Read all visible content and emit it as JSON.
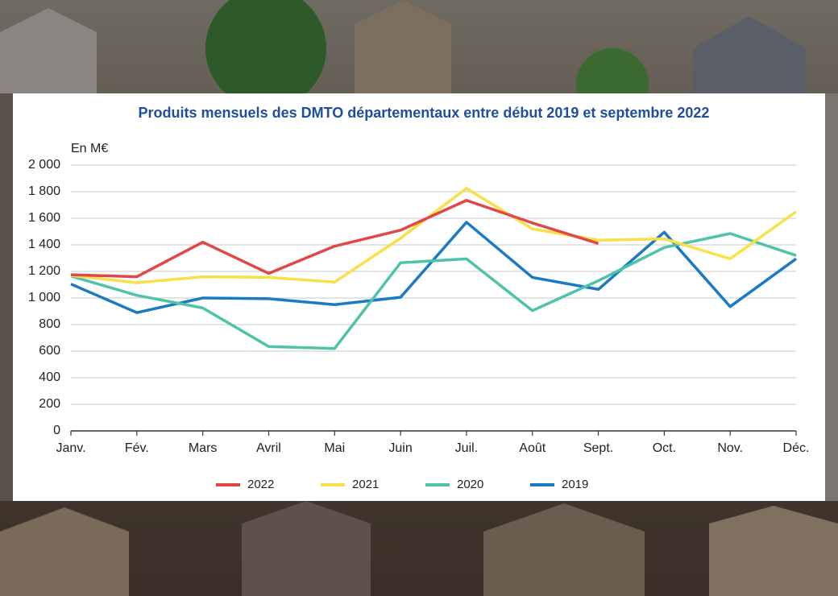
{
  "chart_data": {
    "type": "line",
    "title": "Produits mensuels des DMTO départementaux entre début 2019 et septembre 2022",
    "y_label": "En M€",
    "categories": [
      "Janv.",
      "Fév.",
      "Mars",
      "Avril",
      "Mai",
      "Juin",
      "Juil.",
      "Août",
      "Sept.",
      "Oct.",
      "Nov.",
      "Déc."
    ],
    "series": [
      {
        "name": "2022",
        "color": "#e04848",
        "values": [
          1175,
          1160,
          1420,
          1185,
          1390,
          1510,
          1735,
          1565,
          1410,
          null,
          null,
          null
        ]
      },
      {
        "name": "2021",
        "color": "#f8e048",
        "values": [
          1170,
          1115,
          1160,
          1155,
          1120,
          1450,
          1825,
          1520,
          1435,
          1445,
          1295,
          1650
        ]
      },
      {
        "name": "2020",
        "color": "#4fc3a9",
        "values": [
          1165,
          1020,
          925,
          635,
          620,
          1265,
          1295,
          905,
          1130,
          1380,
          1485,
          1320
        ]
      },
      {
        "name": "2019",
        "color": "#1b7bc2",
        "values": [
          1105,
          890,
          1000,
          995,
          950,
          1005,
          1570,
          1155,
          1065,
          1495,
          935,
          1295
        ]
      }
    ],
    "ylim": [
      0,
      2000
    ],
    "yticks": [
      0,
      200,
      400,
      600,
      800,
      {
        "value": 1000,
        "label": "1 000"
      },
      {
        "value": 1200,
        "label": "1 200"
      },
      {
        "value": 1400,
        "label": "1 400"
      },
      {
        "value": 1600,
        "label": "1 600"
      },
      {
        "value": 1800,
        "label": "1 800"
      },
      {
        "value": 2000,
        "label": "2 000"
      }
    ],
    "grid": true,
    "legend": "bottom"
  }
}
